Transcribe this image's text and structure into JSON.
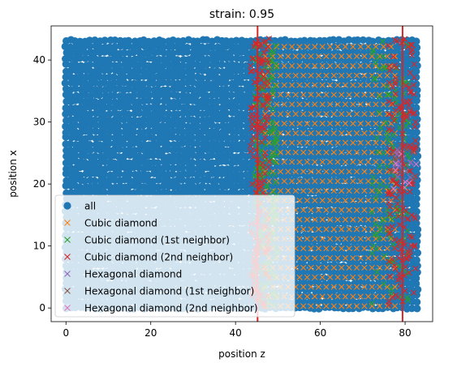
{
  "chart_data": {
    "type": "scatter",
    "title": "strain: 0.95",
    "xlabel": "position z",
    "ylabel": "position x",
    "xlim": [
      -3.5,
      86.5
    ],
    "ylim": [
      -2.2,
      45.5
    ],
    "xticks": [
      0,
      20,
      40,
      60,
      80
    ],
    "yticks": [
      0,
      10,
      20,
      30,
      40
    ],
    "vlines": [
      {
        "x": 45.2,
        "color": "#d62728"
      },
      {
        "x": 79.4,
        "color": "#d62728"
      }
    ],
    "legend_location": "lower-left",
    "series": [
      {
        "name": "all",
        "marker": "circle",
        "color": "#1f77b4",
        "x_range": [
          0,
          83
        ],
        "y_range": [
          0,
          43.5
        ]
      },
      {
        "name": "Cubic diamond",
        "marker": "x",
        "color": "#ff7f0e",
        "x_range": [
          44,
          79
        ],
        "y_range": [
          0,
          43
        ]
      },
      {
        "name": "Cubic diamond (1st neighbor)",
        "marker": "x",
        "color": "#2ca02c",
        "x_range": [
          44,
          82
        ],
        "y_range": [
          0,
          43
        ]
      },
      {
        "name": "Cubic diamond (2nd neighbor)",
        "marker": "x",
        "color": "#d62728",
        "x_range": [
          43,
          83
        ],
        "y_range": [
          0,
          43.5
        ]
      },
      {
        "name": "Hexagonal diamond",
        "marker": "x",
        "color": "#9467bd",
        "x_range": [
          78,
          82
        ],
        "y_range": [
          21,
          26
        ]
      },
      {
        "name": "Hexagonal diamond (1st neighbor)",
        "marker": "x",
        "color": "#8c564b",
        "x_range": [
          77,
          82
        ],
        "y_range": [
          20,
          27
        ]
      },
      {
        "name": "Hexagonal diamond (2nd neighbor)",
        "marker": "x",
        "color": "#e377c2",
        "x_range": [
          76,
          83
        ],
        "y_range": [
          19,
          28
        ]
      }
    ]
  }
}
